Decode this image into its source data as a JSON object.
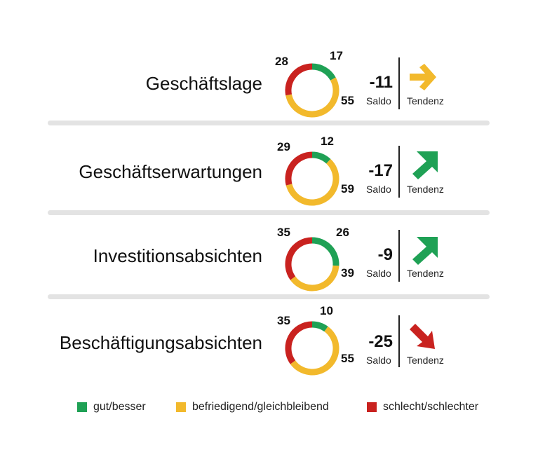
{
  "colors": {
    "good": "#1fa155",
    "neutral": "#f2b92c",
    "bad": "#c9221f"
  },
  "chart_data": {
    "type": "donut",
    "legend": [
      {
        "key": "good",
        "label": "gut/besser"
      },
      {
        "key": "neutral",
        "label": "befriedigend/gleichbleibend"
      },
      {
        "key": "bad",
        "label": "schlecht/schlechter"
      }
    ],
    "rows": [
      {
        "label": "Geschäftslage",
        "good": 17,
        "neutral": 55,
        "bad": 28,
        "saldo": "-11",
        "saldo_caption": "Saldo",
        "trend": "right",
        "trend_caption": "Tendenz"
      },
      {
        "label": "Geschäftserwartungen",
        "good": 12,
        "neutral": 59,
        "bad": 29,
        "saldo": "-17",
        "saldo_caption": "Saldo",
        "trend": "up",
        "trend_caption": "Tendenz"
      },
      {
        "label": "Investitionsabsichten",
        "good": 26,
        "neutral": 39,
        "bad": 35,
        "saldo": "-9",
        "saldo_caption": "Saldo",
        "trend": "up",
        "trend_caption": "Tendenz"
      },
      {
        "label": "Beschäftigungsabsichten",
        "good": 10,
        "neutral": 55,
        "bad": 35,
        "saldo": "-25",
        "saldo_caption": "Saldo",
        "trend": "down",
        "trend_caption": "Tendenz"
      }
    ]
  }
}
